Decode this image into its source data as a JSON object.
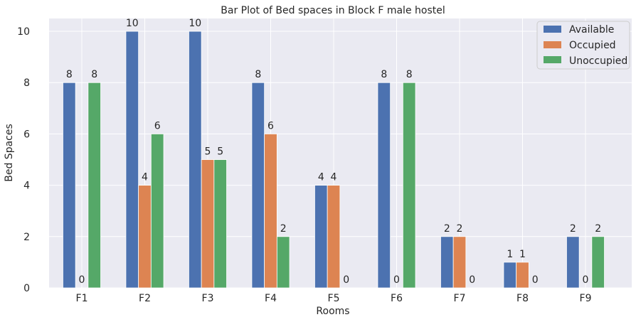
{
  "chart_data": {
    "type": "bar",
    "title": "Bar Plot of Bed spaces in Block F male hostel",
    "xlabel": "Rooms",
    "ylabel": "Bed Spaces",
    "categories": [
      "F1",
      "F2",
      "F3",
      "F4",
      "F5",
      "F6",
      "F7",
      "F8",
      "F9"
    ],
    "series": [
      {
        "name": "Available",
        "color": "#4c72b0",
        "values": [
          8,
          10,
          10,
          8,
          4,
          8,
          2,
          1,
          2
        ]
      },
      {
        "name": "Occupied",
        "color": "#dd8452",
        "values": [
          0,
          4,
          5,
          6,
          4,
          0,
          2,
          1,
          0
        ]
      },
      {
        "name": "Unoccupied",
        "color": "#55a868",
        "values": [
          8,
          6,
          5,
          2,
          0,
          8,
          0,
          0,
          2
        ]
      }
    ],
    "ylim": [
      0,
      10.5
    ],
    "yticks": [
      0,
      2,
      4,
      6,
      8,
      10
    ],
    "grid": true,
    "legend_position": "top-right",
    "background": "#eaeaf2"
  }
}
